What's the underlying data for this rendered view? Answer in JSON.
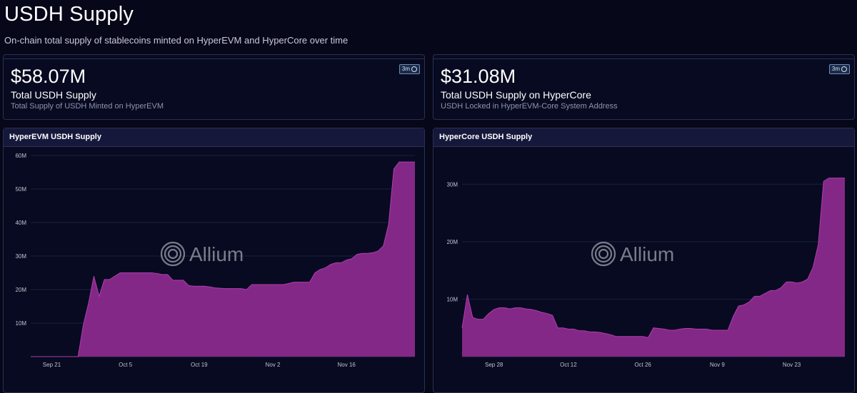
{
  "header": {
    "title": "USDH Supply",
    "subtitle": "On-chain total supply of stablecoins minted on HyperEVM and HyperCore over time"
  },
  "kpis": [
    {
      "value": "$58.07M",
      "label": "Total USDH Supply",
      "sub": "Total Supply of USDH Minted on HyperEVM",
      "badge": "3m"
    },
    {
      "value": "$31.08M",
      "label": "Total USDH Supply on HyperCore",
      "sub": "USDH Locked in HyperEVM-Core System Address",
      "badge": "3m"
    }
  ],
  "watermark": "Allium",
  "colors": {
    "area": "#8a2a8c",
    "line": "#b13cb0",
    "grid": "#1c2040",
    "axis": "#c0c3d0"
  },
  "chart_data": [
    {
      "type": "area",
      "title": "HyperEVM USDH Supply",
      "ylim": [
        0,
        60
      ],
      "yticks": [
        10,
        20,
        30,
        40,
        50,
        60
      ],
      "ytick_labels": [
        "10M",
        "20M",
        "30M",
        "40M",
        "50M",
        "60M"
      ],
      "xlim": [
        0,
        73
      ],
      "xticks": [
        4,
        18,
        32,
        46,
        60
      ],
      "xtick_labels": [
        "Sep 21",
        "Oct 5",
        "Oct 19",
        "Nov 2",
        "Nov 16"
      ],
      "series": [
        {
          "x": [
            0,
            9,
            10,
            11,
            12,
            13,
            14,
            15,
            16,
            17,
            18,
            19,
            20,
            21,
            22,
            23,
            24,
            25,
            26,
            27,
            28,
            29,
            30,
            31,
            32,
            33,
            34,
            35,
            36,
            37,
            38,
            39,
            40,
            41,
            42,
            43,
            44,
            45,
            46,
            47,
            48,
            49,
            50,
            51,
            52,
            53,
            54,
            55,
            56,
            57,
            58,
            59,
            60,
            61,
            62,
            63,
            64,
            65,
            66,
            67,
            68,
            69,
            70,
            71,
            72,
            73
          ],
          "values": [
            0,
            0,
            9.5,
            16,
            24,
            18,
            23,
            23,
            24,
            25,
            25,
            25,
            25,
            25,
            25,
            25,
            24.8,
            24.5,
            24.5,
            22.8,
            22.8,
            22.8,
            21.2,
            21,
            21,
            21,
            20.8,
            20.5,
            20.4,
            20.3,
            20.3,
            20.3,
            20.3,
            20,
            21.5,
            21.5,
            21.5,
            21.5,
            21.5,
            21.5,
            21.5,
            21.8,
            22.2,
            22.2,
            22.2,
            22.2,
            25,
            26,
            26.5,
            27.5,
            28,
            28,
            28.8,
            29.2,
            30.5,
            30.8,
            30.8,
            31,
            31.5,
            33,
            39.5,
            56,
            58.07,
            58.07,
            58.07,
            58.07
          ]
        }
      ]
    },
    {
      "type": "area",
      "title": "HyperCore USDH Supply",
      "ylim": [
        0,
        35
      ],
      "yticks": [
        10,
        20,
        30
      ],
      "ytick_labels": [
        "10M",
        "20M",
        "30M"
      ],
      "xlim": [
        0,
        72
      ],
      "xticks": [
        6,
        20,
        34,
        48,
        62
      ],
      "xtick_labels": [
        "Sep 28",
        "Oct 12",
        "Oct 26",
        "Nov 9",
        "Nov 23"
      ],
      "series": [
        {
          "x": [
            0,
            1,
            2,
            3,
            4,
            5,
            6,
            7,
            8,
            9,
            10,
            11,
            12,
            13,
            14,
            15,
            16,
            17,
            18,
            19,
            20,
            21,
            22,
            23,
            24,
            25,
            26,
            27,
            28,
            29,
            30,
            31,
            32,
            33,
            34,
            35,
            36,
            37,
            38,
            39,
            40,
            41,
            42,
            43,
            44,
            45,
            46,
            47,
            48,
            49,
            50,
            51,
            52,
            53,
            54,
            55,
            56,
            57,
            58,
            59,
            60,
            61,
            62,
            63,
            64,
            65,
            66,
            67,
            68,
            69,
            70,
            71,
            72
          ],
          "values": [
            5,
            10.8,
            6.8,
            6.5,
            6.5,
            7.5,
            8.2,
            8.5,
            8.5,
            8.3,
            8.5,
            8.5,
            8.3,
            8.2,
            8,
            7.7,
            7.5,
            7.2,
            5,
            5,
            4.8,
            4.8,
            4.5,
            4.5,
            4.3,
            4.3,
            4.2,
            4,
            3.8,
            3.5,
            3.5,
            3.5,
            3.5,
            3.5,
            3.5,
            3.3,
            5,
            4.9,
            4.8,
            4.6,
            4.6,
            4.8,
            4.9,
            4.9,
            4.8,
            4.8,
            4.8,
            4.6,
            4.6,
            4.6,
            4.6,
            7,
            8.8,
            9,
            9.5,
            10.5,
            10.5,
            11,
            11.5,
            11.5,
            12,
            13,
            13,
            12.8,
            13,
            13.5,
            15.5,
            19.5,
            30.5,
            31.08,
            31.08,
            31.08,
            31.08
          ]
        }
      ]
    }
  ]
}
